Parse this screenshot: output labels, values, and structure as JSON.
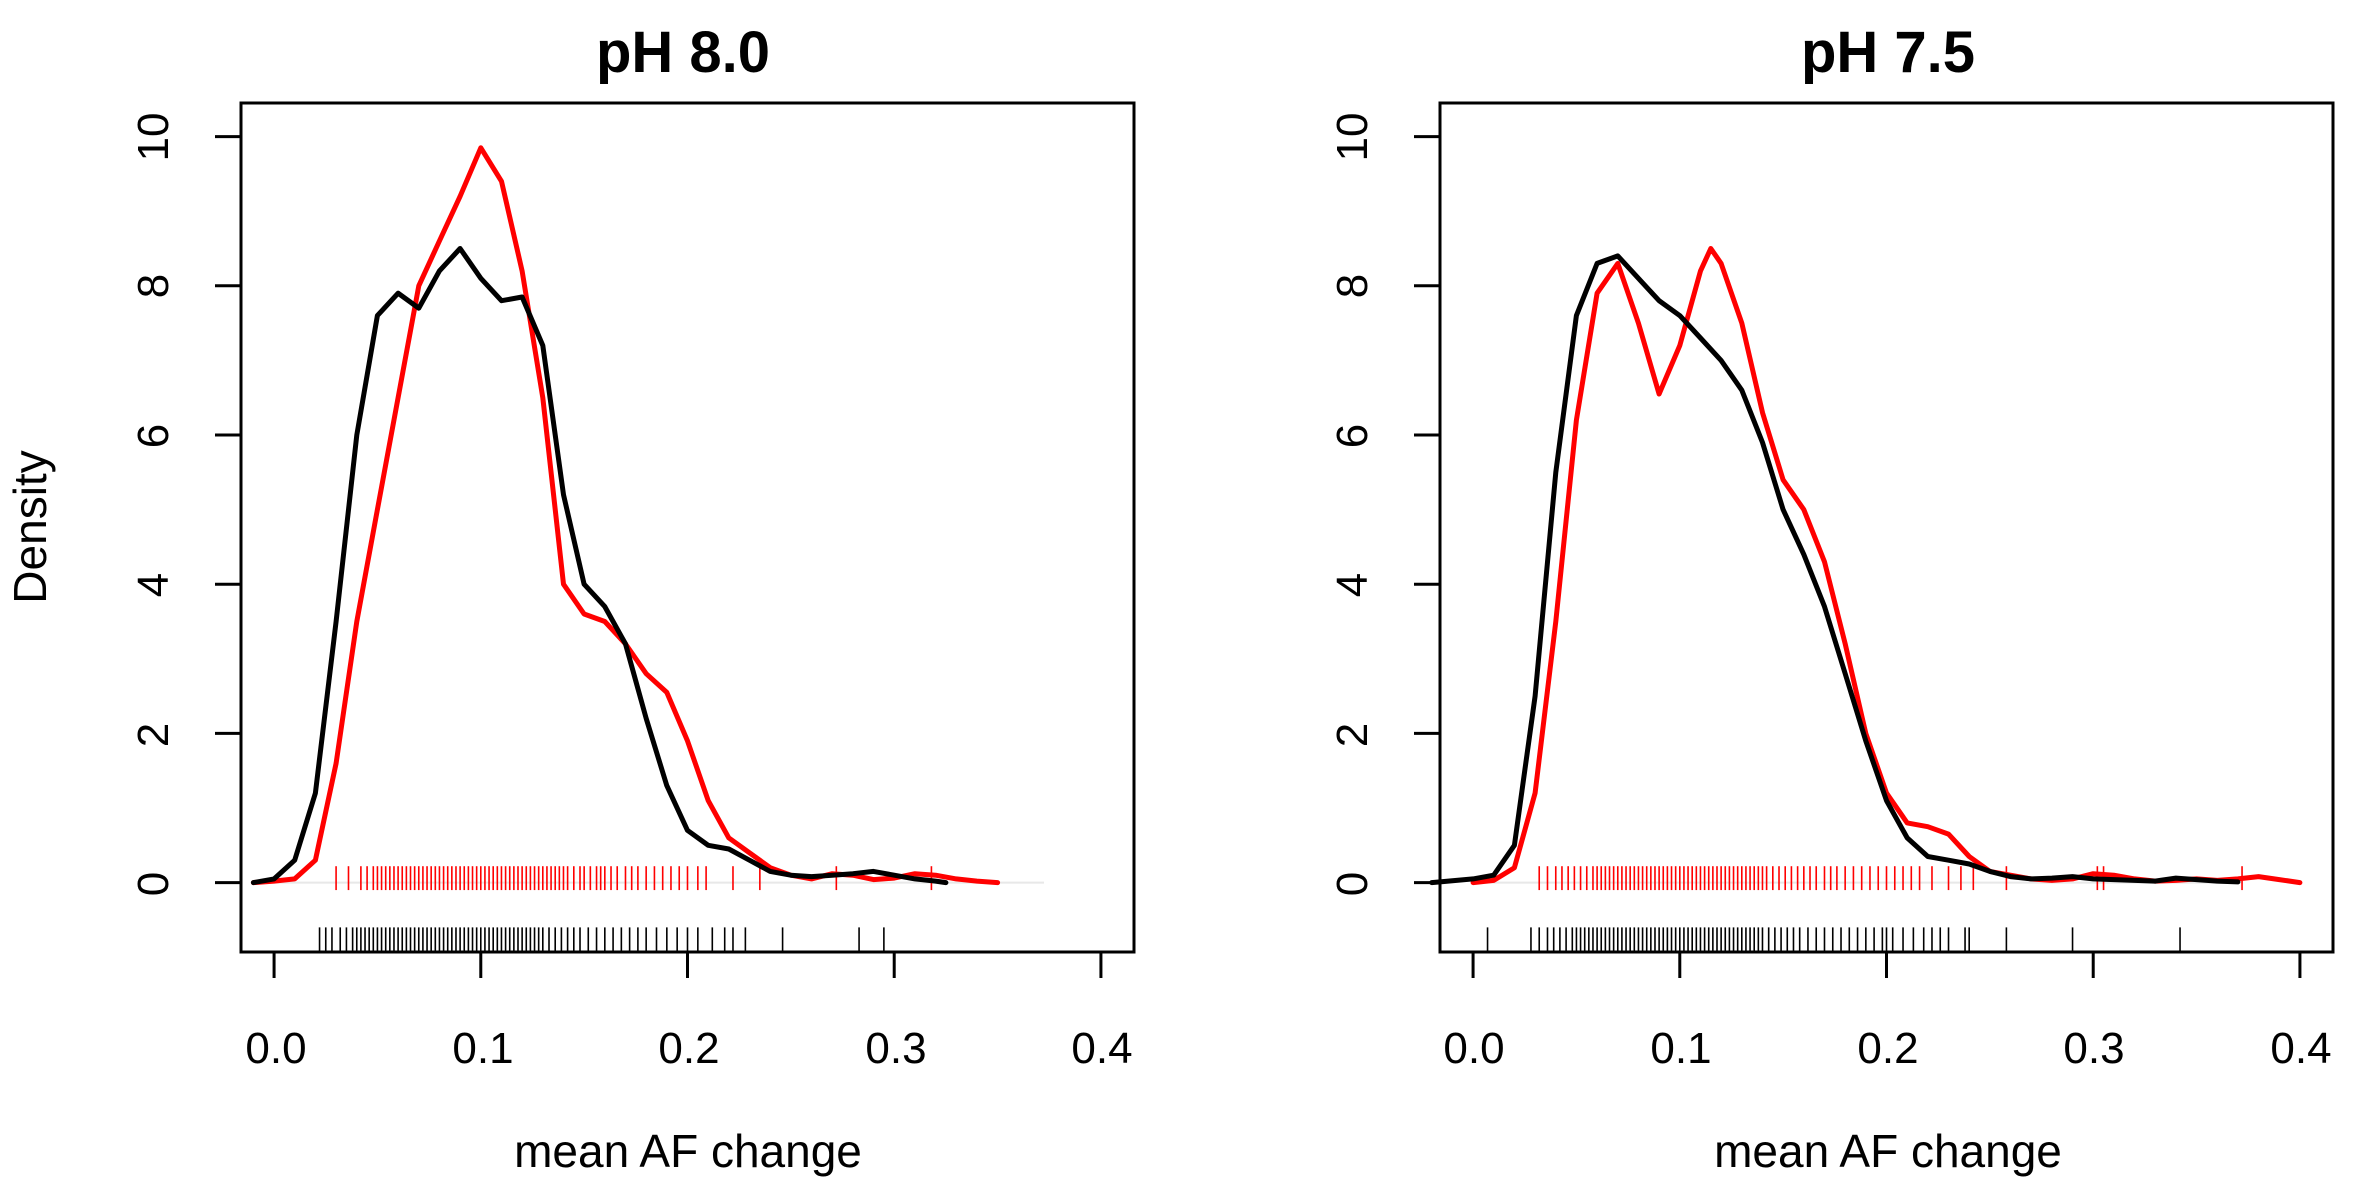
{
  "figure": {
    "ylabel": "Density"
  },
  "colors": {
    "red": "#ff0000",
    "black": "#000000"
  },
  "chart_data": [
    {
      "type": "line",
      "title": "pH 8.0",
      "xlabel": "mean AF change",
      "ylabel": "Density",
      "xlim": [
        -0.016,
        0.416
      ],
      "ylim": [
        -0.93,
        10.45
      ],
      "xticks": [
        0.0,
        0.1,
        0.2,
        0.3,
        0.4
      ],
      "xtick_labels": [
        "0.0",
        "0.1",
        "0.2",
        "0.3",
        "0.4"
      ],
      "yticks": [
        0,
        2,
        4,
        6,
        8,
        10
      ],
      "ytick_labels": [
        "0",
        "2",
        "4",
        "6",
        "8",
        "10"
      ],
      "series": [
        {
          "color": "#ff0000",
          "points": [
            [
              -0.01,
              0.0
            ],
            [
              0.0,
              0.02
            ],
            [
              0.01,
              0.05
            ],
            [
              0.02,
              0.3
            ],
            [
              0.03,
              1.6
            ],
            [
              0.04,
              3.5
            ],
            [
              0.05,
              5.0
            ],
            [
              0.06,
              6.5
            ],
            [
              0.07,
              8.0
            ],
            [
              0.08,
              8.6
            ],
            [
              0.09,
              9.2
            ],
            [
              0.1,
              9.85
            ],
            [
              0.11,
              9.4
            ],
            [
              0.12,
              8.2
            ],
            [
              0.13,
              6.5
            ],
            [
              0.14,
              4.0
            ],
            [
              0.15,
              3.6
            ],
            [
              0.16,
              3.5
            ],
            [
              0.17,
              3.2
            ],
            [
              0.18,
              2.8
            ],
            [
              0.19,
              2.55
            ],
            [
              0.2,
              1.9
            ],
            [
              0.21,
              1.1
            ],
            [
              0.22,
              0.6
            ],
            [
              0.23,
              0.4
            ],
            [
              0.24,
              0.2
            ],
            [
              0.25,
              0.1
            ],
            [
              0.26,
              0.05
            ],
            [
              0.27,
              0.12
            ],
            [
              0.28,
              0.1
            ],
            [
              0.29,
              0.04
            ],
            [
              0.3,
              0.06
            ],
            [
              0.31,
              0.12
            ],
            [
              0.32,
              0.1
            ],
            [
              0.33,
              0.05
            ],
            [
              0.34,
              0.02
            ],
            [
              0.35,
              0.0
            ]
          ],
          "rug": [
            0.03,
            0.036,
            0.042,
            0.045,
            0.048,
            0.05,
            0.052,
            0.054,
            0.056,
            0.058,
            0.06,
            0.062,
            0.064,
            0.066,
            0.068,
            0.07,
            0.072,
            0.074,
            0.076,
            0.078,
            0.08,
            0.082,
            0.084,
            0.086,
            0.088,
            0.09,
            0.092,
            0.094,
            0.096,
            0.098,
            0.1,
            0.102,
            0.104,
            0.106,
            0.108,
            0.11,
            0.112,
            0.114,
            0.116,
            0.118,
            0.12,
            0.122,
            0.124,
            0.126,
            0.128,
            0.13,
            0.132,
            0.134,
            0.136,
            0.138,
            0.14,
            0.142,
            0.145,
            0.148,
            0.15,
            0.153,
            0.156,
            0.158,
            0.16,
            0.163,
            0.166,
            0.17,
            0.173,
            0.176,
            0.18,
            0.184,
            0.188,
            0.192,
            0.196,
            0.2,
            0.205,
            0.209,
            0.222,
            0.235,
            0.272,
            0.318
          ]
        },
        {
          "color": "#000000",
          "points": [
            [
              -0.01,
              0.0
            ],
            [
              0.0,
              0.05
            ],
            [
              0.01,
              0.3
            ],
            [
              0.02,
              1.2
            ],
            [
              0.03,
              3.5
            ],
            [
              0.04,
              6.0
            ],
            [
              0.05,
              7.6
            ],
            [
              0.06,
              7.9
            ],
            [
              0.07,
              7.7
            ],
            [
              0.08,
              8.2
            ],
            [
              0.09,
              8.5
            ],
            [
              0.1,
              8.1
            ],
            [
              0.11,
              7.8
            ],
            [
              0.12,
              7.85
            ],
            [
              0.13,
              7.2
            ],
            [
              0.14,
              5.2
            ],
            [
              0.15,
              4.0
            ],
            [
              0.16,
              3.7
            ],
            [
              0.17,
              3.2
            ],
            [
              0.18,
              2.2
            ],
            [
              0.19,
              1.3
            ],
            [
              0.2,
              0.7
            ],
            [
              0.21,
              0.5
            ],
            [
              0.22,
              0.45
            ],
            [
              0.23,
              0.3
            ],
            [
              0.24,
              0.15
            ],
            [
              0.25,
              0.1
            ],
            [
              0.26,
              0.08
            ],
            [
              0.27,
              0.1
            ],
            [
              0.28,
              0.12
            ],
            [
              0.29,
              0.15
            ],
            [
              0.3,
              0.1
            ],
            [
              0.31,
              0.05
            ],
            [
              0.32,
              0.02
            ],
            [
              0.325,
              0.0
            ]
          ],
          "rug": [
            0.022,
            0.025,
            0.028,
            0.032,
            0.035,
            0.038,
            0.04,
            0.042,
            0.044,
            0.046,
            0.048,
            0.05,
            0.052,
            0.054,
            0.056,
            0.058,
            0.06,
            0.062,
            0.064,
            0.066,
            0.068,
            0.07,
            0.072,
            0.074,
            0.076,
            0.078,
            0.08,
            0.082,
            0.084,
            0.086,
            0.088,
            0.09,
            0.092,
            0.094,
            0.096,
            0.098,
            0.1,
            0.102,
            0.104,
            0.106,
            0.108,
            0.11,
            0.112,
            0.114,
            0.116,
            0.118,
            0.12,
            0.122,
            0.124,
            0.126,
            0.128,
            0.13,
            0.133,
            0.136,
            0.139,
            0.142,
            0.145,
            0.148,
            0.152,
            0.156,
            0.16,
            0.164,
            0.168,
            0.172,
            0.176,
            0.18,
            0.185,
            0.19,
            0.195,
            0.2,
            0.205,
            0.212,
            0.218,
            0.222,
            0.228,
            0.246,
            0.283,
            0.295
          ]
        }
      ]
    },
    {
      "type": "line",
      "title": "pH 7.5",
      "xlabel": "mean AF change",
      "ylabel": "Density",
      "xlim": [
        -0.016,
        0.416
      ],
      "ylim": [
        -0.93,
        10.45
      ],
      "xticks": [
        0.0,
        0.1,
        0.2,
        0.3,
        0.4
      ],
      "xtick_labels": [
        "0.0",
        "0.1",
        "0.2",
        "0.3",
        "0.4"
      ],
      "yticks": [
        0,
        2,
        4,
        6,
        8,
        10
      ],
      "ytick_labels": [
        "0",
        "2",
        "4",
        "6",
        "8",
        "10"
      ],
      "series": [
        {
          "color": "#ff0000",
          "points": [
            [
              0.0,
              0.0
            ],
            [
              0.01,
              0.03
            ],
            [
              0.02,
              0.2
            ],
            [
              0.03,
              1.2
            ],
            [
              0.04,
              3.5
            ],
            [
              0.05,
              6.2
            ],
            [
              0.06,
              7.9
            ],
            [
              0.07,
              8.3
            ],
            [
              0.08,
              7.5
            ],
            [
              0.09,
              6.55
            ],
            [
              0.1,
              7.2
            ],
            [
              0.11,
              8.2
            ],
            [
              0.115,
              8.5
            ],
            [
              0.12,
              8.3
            ],
            [
              0.13,
              7.5
            ],
            [
              0.14,
              6.3
            ],
            [
              0.15,
              5.4
            ],
            [
              0.16,
              5.0
            ],
            [
              0.17,
              4.3
            ],
            [
              0.18,
              3.2
            ],
            [
              0.19,
              2.0
            ],
            [
              0.2,
              1.2
            ],
            [
              0.21,
              0.8
            ],
            [
              0.22,
              0.75
            ],
            [
              0.23,
              0.65
            ],
            [
              0.24,
              0.35
            ],
            [
              0.25,
              0.15
            ],
            [
              0.26,
              0.1
            ],
            [
              0.27,
              0.05
            ],
            [
              0.28,
              0.03
            ],
            [
              0.29,
              0.05
            ],
            [
              0.3,
              0.12
            ],
            [
              0.31,
              0.1
            ],
            [
              0.32,
              0.05
            ],
            [
              0.33,
              0.02
            ],
            [
              0.34,
              0.03
            ],
            [
              0.35,
              0.05
            ],
            [
              0.36,
              0.03
            ],
            [
              0.37,
              0.05
            ],
            [
              0.38,
              0.08
            ],
            [
              0.39,
              0.04
            ],
            [
              0.4,
              0.0
            ]
          ],
          "rug": [
            0.032,
            0.036,
            0.04,
            0.043,
            0.046,
            0.049,
            0.052,
            0.055,
            0.058,
            0.06,
            0.062,
            0.064,
            0.066,
            0.068,
            0.07,
            0.072,
            0.074,
            0.076,
            0.078,
            0.08,
            0.082,
            0.084,
            0.086,
            0.088,
            0.09,
            0.092,
            0.094,
            0.096,
            0.098,
            0.1,
            0.102,
            0.104,
            0.106,
            0.108,
            0.11,
            0.112,
            0.114,
            0.116,
            0.118,
            0.12,
            0.122,
            0.124,
            0.126,
            0.128,
            0.13,
            0.132,
            0.134,
            0.136,
            0.138,
            0.14,
            0.142,
            0.145,
            0.148,
            0.151,
            0.154,
            0.157,
            0.16,
            0.163,
            0.166,
            0.17,
            0.173,
            0.176,
            0.18,
            0.184,
            0.188,
            0.192,
            0.196,
            0.2,
            0.204,
            0.208,
            0.212,
            0.216,
            0.222,
            0.23,
            0.236,
            0.242,
            0.258,
            0.302,
            0.305,
            0.372
          ]
        },
        {
          "color": "#000000",
          "points": [
            [
              -0.02,
              0.0
            ],
            [
              0.0,
              0.05
            ],
            [
              0.01,
              0.1
            ],
            [
              0.02,
              0.5
            ],
            [
              0.03,
              2.5
            ],
            [
              0.04,
              5.5
            ],
            [
              0.05,
              7.6
            ],
            [
              0.06,
              8.3
            ],
            [
              0.07,
              8.4
            ],
            [
              0.08,
              8.1
            ],
            [
              0.09,
              7.8
            ],
            [
              0.1,
              7.6
            ],
            [
              0.11,
              7.3
            ],
            [
              0.12,
              7.0
            ],
            [
              0.13,
              6.6
            ],
            [
              0.14,
              5.9
            ],
            [
              0.15,
              5.0
            ],
            [
              0.16,
              4.4
            ],
            [
              0.17,
              3.7
            ],
            [
              0.18,
              2.8
            ],
            [
              0.19,
              1.9
            ],
            [
              0.2,
              1.1
            ],
            [
              0.21,
              0.6
            ],
            [
              0.22,
              0.35
            ],
            [
              0.23,
              0.3
            ],
            [
              0.24,
              0.25
            ],
            [
              0.25,
              0.15
            ],
            [
              0.26,
              0.08
            ],
            [
              0.27,
              0.05
            ],
            [
              0.28,
              0.06
            ],
            [
              0.29,
              0.08
            ],
            [
              0.3,
              0.05
            ],
            [
              0.31,
              0.04
            ],
            [
              0.32,
              0.03
            ],
            [
              0.33,
              0.02
            ],
            [
              0.34,
              0.06
            ],
            [
              0.35,
              0.04
            ],
            [
              0.36,
              0.02
            ],
            [
              0.37,
              0.01
            ]
          ],
          "rug": [
            0.007,
            0.028,
            0.032,
            0.036,
            0.039,
            0.042,
            0.045,
            0.048,
            0.05,
            0.052,
            0.054,
            0.056,
            0.058,
            0.06,
            0.062,
            0.064,
            0.066,
            0.068,
            0.07,
            0.072,
            0.074,
            0.076,
            0.078,
            0.08,
            0.082,
            0.084,
            0.086,
            0.088,
            0.09,
            0.092,
            0.094,
            0.096,
            0.098,
            0.1,
            0.102,
            0.104,
            0.106,
            0.108,
            0.11,
            0.112,
            0.114,
            0.116,
            0.118,
            0.12,
            0.122,
            0.124,
            0.126,
            0.128,
            0.13,
            0.132,
            0.134,
            0.136,
            0.138,
            0.14,
            0.143,
            0.146,
            0.149,
            0.152,
            0.155,
            0.158,
            0.162,
            0.166,
            0.17,
            0.174,
            0.178,
            0.182,
            0.186,
            0.19,
            0.194,
            0.198,
            0.2,
            0.203,
            0.208,
            0.213,
            0.218,
            0.222,
            0.226,
            0.23,
            0.238,
            0.24,
            0.258,
            0.29,
            0.342
          ]
        }
      ]
    }
  ]
}
